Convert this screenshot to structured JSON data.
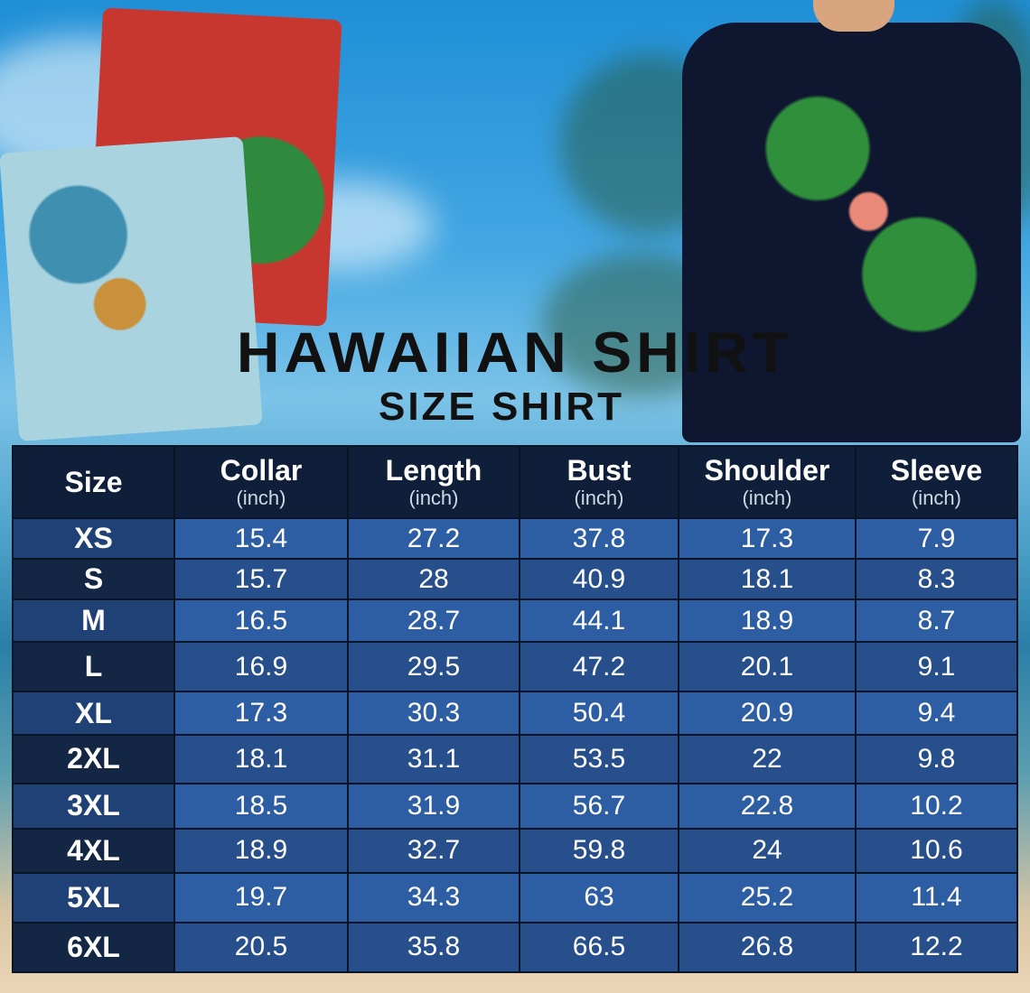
{
  "title": "HAWAIIAN SHIRT",
  "subtitle": "SIZE SHIRT",
  "colors": {
    "header_bg": "#0f1f3a",
    "row_light": "#2d5ea3",
    "row_dark": "#264f8c",
    "size_col_dark": "#132744",
    "title": "#111111"
  },
  "chart_data": {
    "type": "table",
    "columns": [
      {
        "label": "Size",
        "unit": ""
      },
      {
        "label": "Collar",
        "unit": "(inch)"
      },
      {
        "label": "Length",
        "unit": "(inch)"
      },
      {
        "label": "Bust",
        "unit": "(inch)"
      },
      {
        "label": "Shoulder",
        "unit": "(inch)"
      },
      {
        "label": "Sleeve",
        "unit": "(inch)"
      }
    ],
    "rows": [
      [
        "XS",
        "15.4",
        "27.2",
        "37.8",
        "17.3",
        "7.9"
      ],
      [
        "S",
        "15.7",
        "28",
        "40.9",
        "18.1",
        "8.3"
      ],
      [
        "M",
        "16.5",
        "28.7",
        "44.1",
        "18.9",
        "8.7"
      ],
      [
        "L",
        "16.9",
        "29.5",
        "47.2",
        "20.1",
        "9.1"
      ],
      [
        "XL",
        "17.3",
        "30.3",
        "50.4",
        "20.9",
        "9.4"
      ],
      [
        "2XL",
        "18.1",
        "31.1",
        "53.5",
        "22",
        "9.8"
      ],
      [
        "3XL",
        "18.5",
        "31.9",
        "56.7",
        "22.8",
        "10.2"
      ],
      [
        "4XL",
        "18.9",
        "32.7",
        "59.8",
        "24",
        "10.6"
      ],
      [
        "5XL",
        "19.7",
        "34.3",
        "63",
        "25.2",
        "11.4"
      ],
      [
        "6XL",
        "20.5",
        "35.8",
        "66.5",
        "26.8",
        "12.2"
      ]
    ]
  }
}
